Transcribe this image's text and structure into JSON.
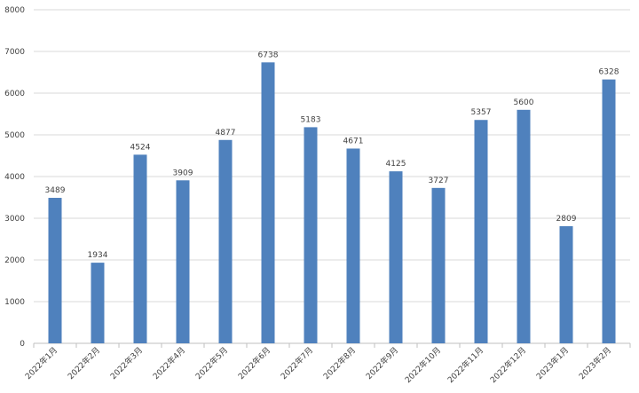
{
  "chart_data": {
    "type": "bar",
    "categories": [
      "2022年1月",
      "2022年2月",
      "2022年3月",
      "2022年4月",
      "2022年5月",
      "2022年6月",
      "2022年7月",
      "2022年8月",
      "2022年9月",
      "2022年10月",
      "2022年11月",
      "2022年12月",
      "2023年1月",
      "2023年2月"
    ],
    "values": [
      3489,
      1934,
      4524,
      3909,
      4877,
      6738,
      5183,
      4671,
      4125,
      3727,
      5357,
      5600,
      2809,
      6328
    ],
    "color": "#4f81bd",
    "ylim": [
      0,
      8000
    ],
    "yticks": [
      0,
      1000,
      2000,
      3000,
      4000,
      5000,
      6000,
      7000,
      8000
    ],
    "grid": true
  }
}
